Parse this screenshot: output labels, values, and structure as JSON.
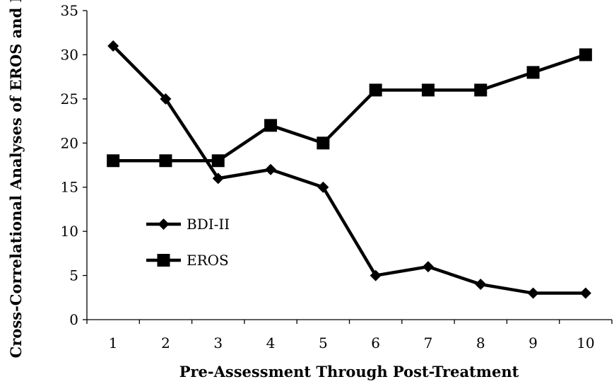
{
  "chart_data": {
    "type": "line",
    "title": "",
    "xlabel": "Pre-Assessment Through Post-Treatment",
    "ylabel": "Cross-Correlational Analyses of EROS and BDI",
    "x": [
      1,
      2,
      3,
      4,
      5,
      6,
      7,
      8,
      9,
      10
    ],
    "ylim": [
      0,
      35
    ],
    "yticks": [
      0,
      5,
      10,
      15,
      20,
      25,
      30,
      35
    ],
    "grid": false,
    "legend_position": "left",
    "series": [
      {
        "name": "BDI-II",
        "marker": "diamond",
        "color": "#000000",
        "values": [
          31,
          25,
          16,
          17,
          15,
          5,
          6,
          4,
          3,
          3
        ]
      },
      {
        "name": "EROS",
        "marker": "square",
        "color": "#000000",
        "values": [
          18,
          18,
          18,
          22,
          20,
          26,
          26,
          26,
          28,
          30
        ]
      }
    ]
  }
}
